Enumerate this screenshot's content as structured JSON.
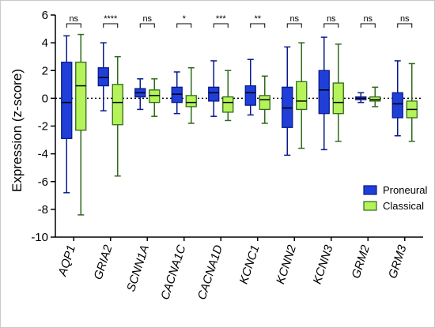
{
  "chart_data": {
    "type": "box",
    "ylabel": "Expression (z-score)",
    "ylim": [
      -10,
      6
    ],
    "yticks": [
      6,
      4,
      2,
      0,
      -2,
      -4,
      -6,
      -8,
      -10
    ],
    "reference_line": 0,
    "legend_position": "right-middle",
    "categories": [
      "AQP1",
      "GRIA2",
      "SCNN1A",
      "CACNA1C",
      "CACNA1D",
      "KCNC1",
      "KCNN2",
      "KCNN3",
      "GRM2",
      "GRM3"
    ],
    "significance": [
      "ns",
      "****",
      "ns",
      "*",
      "***",
      "**",
      "ns",
      "ns",
      "ns",
      "ns"
    ],
    "series": [
      {
        "name": "Proneural",
        "color": "#1f3fd8",
        "edge": "#0a1a8a",
        "boxes": [
          {
            "min": -6.8,
            "q1": -2.9,
            "median": -0.3,
            "q3": 2.6,
            "max": 4.5
          },
          {
            "min": -0.9,
            "q1": 0.9,
            "median": 1.5,
            "q3": 2.2,
            "max": 4.0
          },
          {
            "min": -0.8,
            "q1": 0.1,
            "median": 0.4,
            "q3": 0.7,
            "max": 1.4
          },
          {
            "min": -1.1,
            "q1": -0.3,
            "median": 0.3,
            "q3": 0.8,
            "max": 1.9
          },
          {
            "min": -1.3,
            "q1": -0.2,
            "median": 0.4,
            "q3": 0.8,
            "max": 2.7
          },
          {
            "min": -1.2,
            "q1": -0.5,
            "median": 0.4,
            "q3": 0.9,
            "max": 2.8
          },
          {
            "min": -4.1,
            "q1": -2.1,
            "median": -0.7,
            "q3": 0.8,
            "max": 3.7
          },
          {
            "min": -3.7,
            "q1": -1.1,
            "median": 0.6,
            "q3": 2.0,
            "max": 4.4
          },
          {
            "min": -0.3,
            "q1": -0.1,
            "median": 0.0,
            "q3": 0.1,
            "max": 0.4
          },
          {
            "min": -2.7,
            "q1": -1.4,
            "median": -0.4,
            "q3": 0.4,
            "max": 2.7
          }
        ]
      },
      {
        "name": "Classical",
        "color": "#b6f25a",
        "edge": "#2e6b1a",
        "boxes": [
          {
            "min": -8.4,
            "q1": -2.3,
            "median": 0.9,
            "q3": 2.6,
            "max": 4.6
          },
          {
            "min": -5.6,
            "q1": -1.9,
            "median": -0.3,
            "q3": 1.0,
            "max": 3.0
          },
          {
            "min": -1.3,
            "q1": -0.3,
            "median": 0.2,
            "q3": 0.6,
            "max": 1.4
          },
          {
            "min": -1.8,
            "q1": -0.6,
            "median": -0.3,
            "q3": 0.2,
            "max": 2.2
          },
          {
            "min": -1.6,
            "q1": -1.0,
            "median": -0.3,
            "q3": 0.1,
            "max": 2.0
          },
          {
            "min": -1.8,
            "q1": -0.8,
            "median": -0.1,
            "q3": 0.2,
            "max": 1.6
          },
          {
            "min": -3.6,
            "q1": -0.8,
            "median": -0.2,
            "q3": 1.2,
            "max": 4.0
          },
          {
            "min": -3.1,
            "q1": -1.1,
            "median": -0.3,
            "q3": 1.1,
            "max": 3.9
          },
          {
            "min": -0.6,
            "q1": -0.2,
            "median": -0.1,
            "q3": 0.1,
            "max": 0.8
          },
          {
            "min": -3.1,
            "q1": -1.4,
            "median": -0.8,
            "q3": -0.2,
            "max": 2.5
          }
        ]
      }
    ]
  }
}
